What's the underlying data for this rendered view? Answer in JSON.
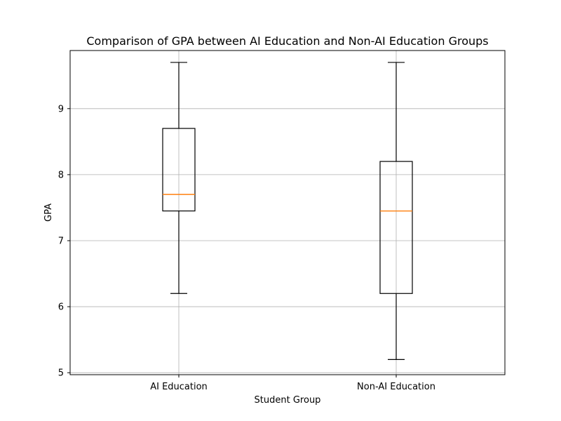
{
  "chart_data": {
    "type": "box",
    "title": "Comparison of GPA between AI Education and Non-AI Education Groups",
    "xlabel": "Student Group",
    "ylabel": "GPA",
    "ylim": [
      4.97,
      9.88
    ],
    "yticks": [
      5,
      6,
      7,
      8,
      9
    ],
    "grid": true,
    "categories": [
      "AI Education",
      "Non-AI Education"
    ],
    "boxes": [
      {
        "category": "AI Education",
        "whisker_low": 6.2,
        "q1": 7.45,
        "median": 7.7,
        "q3": 8.7,
        "whisker_high": 9.7
      },
      {
        "category": "Non-AI Education",
        "whisker_low": 5.2,
        "q1": 6.2,
        "median": 7.45,
        "q3": 8.2,
        "whisker_high": 9.7
      }
    ],
    "colors": {
      "box": "#000000",
      "median": "#ff7f0e",
      "grid": "#b0b0b0"
    }
  }
}
